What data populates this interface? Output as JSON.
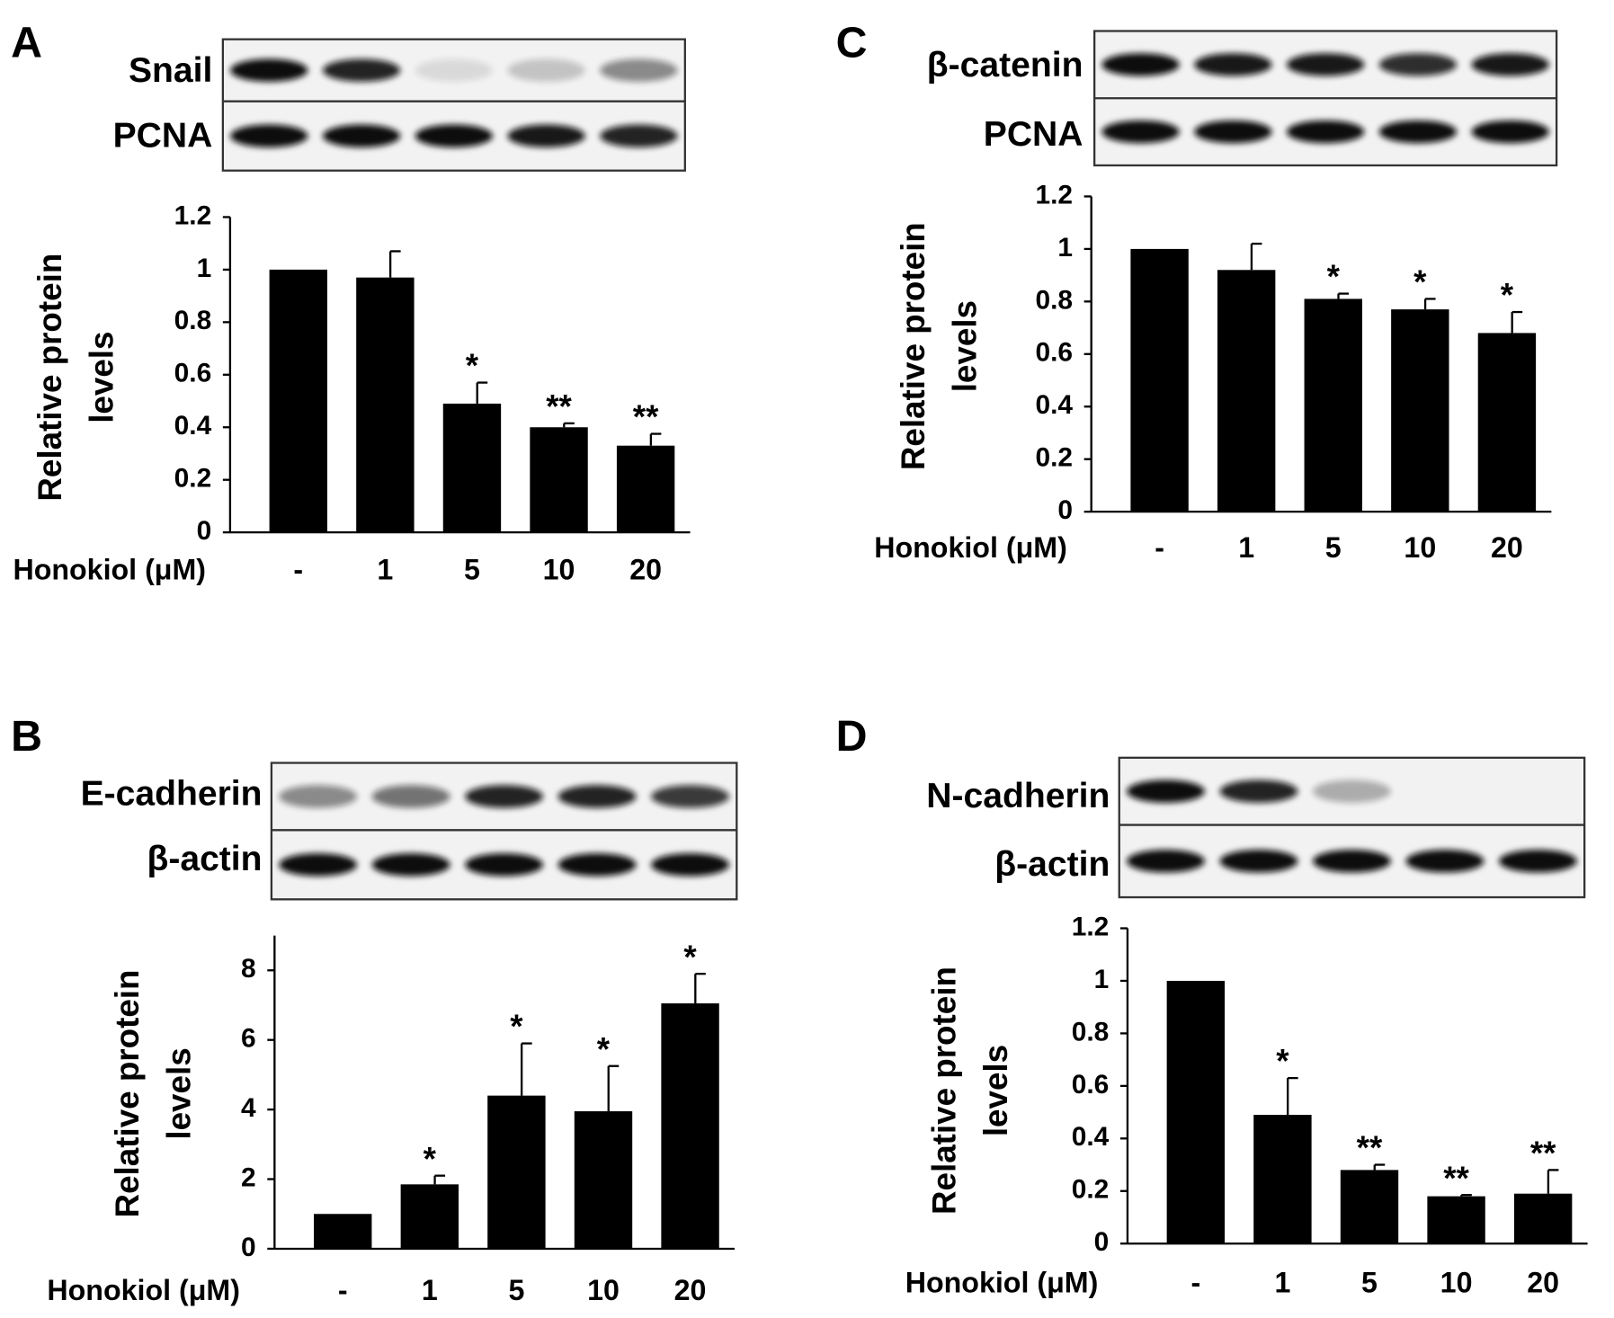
{
  "chart_data": [
    {
      "type": "bar",
      "title": "A",
      "blot_labels": [
        "Snail",
        "PCNA"
      ],
      "y_label": [
        "Relative protein",
        "levels"
      ],
      "x_label": "Honokiol (μM)",
      "categories": [
        "-",
        "1",
        "5",
        "10",
        "20"
      ],
      "values": [
        1,
        0.97,
        0.49,
        0.4,
        0.33
      ],
      "errors": [
        0,
        0.1,
        0.08,
        0.015,
        0.045
      ],
      "annotations": [
        null,
        null,
        "*",
        "**",
        "**"
      ],
      "color": "#000000",
      "ylim": [
        0,
        1.2
      ],
      "yticks": [
        0,
        0.2,
        0.4,
        0.6,
        0.8,
        1,
        1.2
      ]
    },
    {
      "type": "bar",
      "title": "B",
      "blot_labels": [
        "E-cadherin",
        "β-actin"
      ],
      "y_label": [
        "Relative protein",
        "levels"
      ],
      "x_label": "Honokiol (μM)",
      "categories": [
        "-",
        "1",
        "5",
        "10",
        "20"
      ],
      "values": [
        1,
        1.85,
        4.4,
        3.95,
        7.05
      ],
      "errors": [
        0,
        0.25,
        1.5,
        1.3,
        0.85
      ],
      "annotations": [
        null,
        "*",
        "*",
        "*",
        "*"
      ],
      "color": "#000000",
      "ylim": [
        0,
        9
      ],
      "yticks": [
        0,
        2,
        4,
        6,
        8
      ]
    },
    {
      "type": "bar",
      "title": "C",
      "blot_labels": [
        "β-catenin",
        "PCNA"
      ],
      "y_label": [
        "Relative protein",
        "levels"
      ],
      "x_label": "Honokiol (μM)",
      "categories": [
        "-",
        "1",
        "5",
        "10",
        "20"
      ],
      "values": [
        1,
        0.92,
        0.81,
        0.77,
        0.68
      ],
      "errors": [
        0,
        0.1,
        0.02,
        0.04,
        0.08
      ],
      "annotations": [
        null,
        null,
        "*",
        "*",
        "*"
      ],
      "color": "#000000",
      "ylim": [
        0,
        1.2
      ],
      "yticks": [
        0,
        0.2,
        0.4,
        0.6,
        0.8,
        1,
        1.2
      ]
    },
    {
      "type": "bar",
      "title": "D",
      "blot_labels": [
        "N-cadherin",
        "β-actin"
      ],
      "y_label": [
        "Relative protein",
        "levels"
      ],
      "x_label": "Honokiol (μM)",
      "categories": [
        "-",
        "1",
        "5",
        "10",
        "20"
      ],
      "values": [
        1,
        0.49,
        0.28,
        0.18,
        0.19
      ],
      "errors": [
        0,
        0.14,
        0.02,
        0.005,
        0.09
      ],
      "annotations": [
        null,
        "*",
        "**",
        "**",
        "**"
      ],
      "color": "#000000",
      "ylim": [
        0,
        1.2
      ],
      "yticks": [
        0,
        0.2,
        0.4,
        0.6,
        0.8,
        1,
        1.2
      ]
    }
  ]
}
